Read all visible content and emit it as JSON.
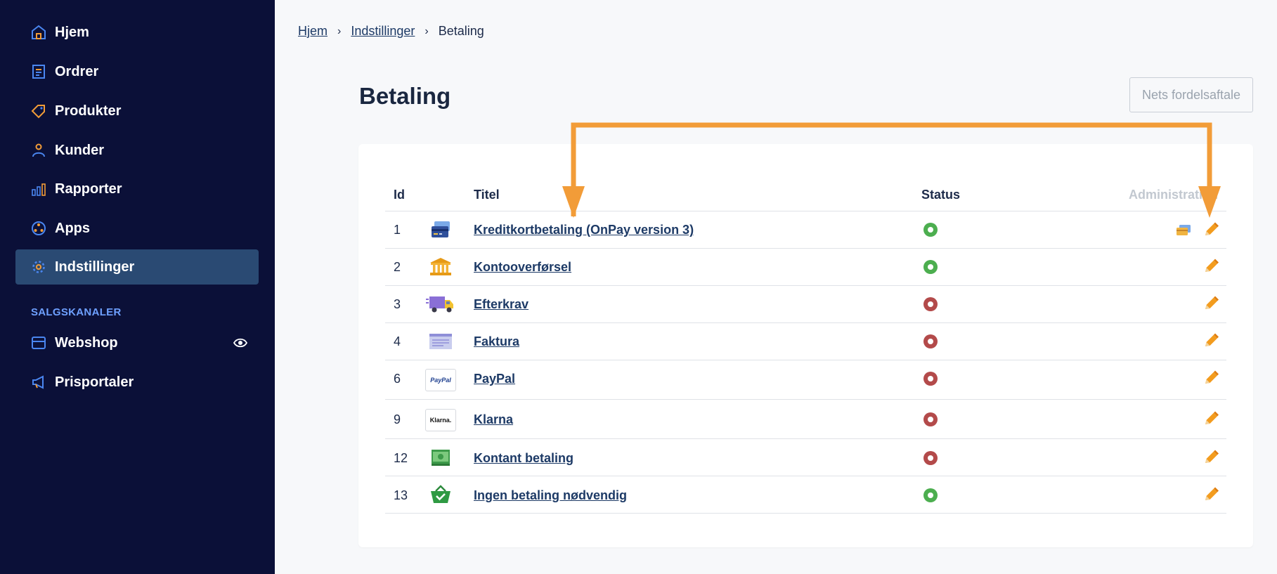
{
  "sidebar": {
    "items": [
      {
        "label": "Hjem",
        "icon": "home-icon"
      },
      {
        "label": "Ordrer",
        "icon": "orders-icon"
      },
      {
        "label": "Produkter",
        "icon": "tag-icon"
      },
      {
        "label": "Kunder",
        "icon": "user-icon"
      },
      {
        "label": "Rapporter",
        "icon": "bar-chart-icon"
      },
      {
        "label": "Apps",
        "icon": "apps-icon"
      },
      {
        "label": "Indstillinger",
        "icon": "gear-icon",
        "active": true
      }
    ],
    "section_label": "SALGSKANALER",
    "channels": [
      {
        "label": "Webshop",
        "icon": "store-icon"
      },
      {
        "label": "Prisportaler",
        "icon": "megaphone-icon"
      }
    ]
  },
  "breadcrumb": {
    "items": [
      "Hjem",
      "Indstillinger",
      "Betaling"
    ]
  },
  "page": {
    "title": "Betaling",
    "nets_button": "Nets fordelsaftale"
  },
  "table": {
    "headers": {
      "id": "Id",
      "title": "Titel",
      "status": "Status",
      "admin": "Administration"
    },
    "rows": [
      {
        "id": "1",
        "title": "Kreditkortbetaling (OnPay version 3)",
        "status": "active",
        "logo": "credit-card-icon"
      },
      {
        "id": "2",
        "title": "Kontooverførsel",
        "status": "active",
        "logo": "bank-icon"
      },
      {
        "id": "3",
        "title": "Efterkrav",
        "status": "inactive",
        "logo": "delivery-truck-icon"
      },
      {
        "id": "4",
        "title": "Faktura",
        "status": "inactive",
        "logo": "invoice-icon"
      },
      {
        "id": "6",
        "title": "PayPal",
        "status": "inactive",
        "logo": "paypal-logo",
        "logo_text": "PayPal"
      },
      {
        "id": "9",
        "title": "Klarna",
        "status": "inactive",
        "logo": "klarna-logo",
        "logo_text": "Klarna."
      },
      {
        "id": "12",
        "title": "Kontant betaling",
        "status": "inactive",
        "logo": "cash-icon"
      },
      {
        "id": "13",
        "title": "Ingen betaling nødvendig",
        "status": "active",
        "logo": "basket-check-icon"
      }
    ]
  },
  "colors": {
    "sidebar_bg": "#0b1038",
    "active_bg": "#2a4a73",
    "accent_orange": "#f29c38",
    "status_active": "#4cae4f",
    "status_inactive": "#b34a4a"
  }
}
